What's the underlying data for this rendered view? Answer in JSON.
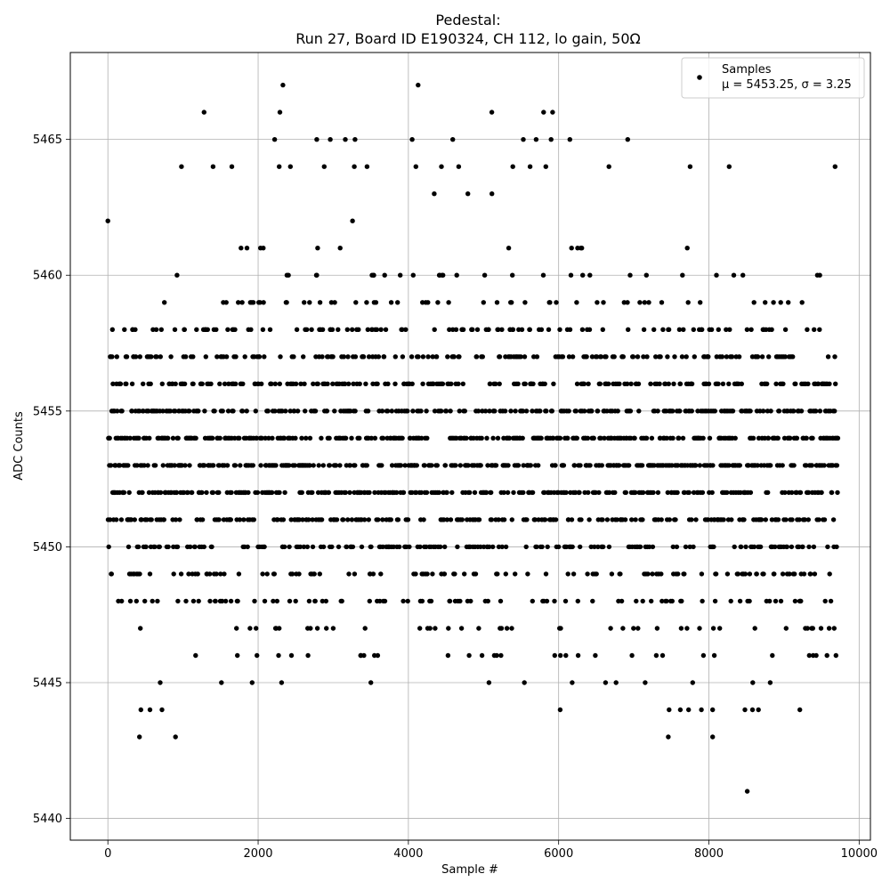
{
  "chart_data": {
    "type": "scatter",
    "title": "Pedestal:",
    "subtitle": "Run 27, Board ID E190324, CH 112, lo gain, 50Ω",
    "xlabel": "Sample #",
    "ylabel": "ADC Counts",
    "xlim": [
      -500,
      10150
    ],
    "ylim": [
      5439.2,
      5468.2
    ],
    "xticks": [
      0,
      2000,
      4000,
      6000,
      8000,
      10000
    ],
    "xtick_labels": [
      "0",
      "2000",
      "4000",
      "6000",
      "8000",
      "10000"
    ],
    "yticks": [
      5440,
      5445,
      5450,
      5455,
      5460,
      5465
    ],
    "ytick_labels": [
      "5440",
      "5445",
      "5450",
      "5455",
      "5460",
      "5465"
    ],
    "grid": true,
    "legend": {
      "placement": "top-right",
      "entries": [
        "Samples",
        "μ = 5453.25, σ = 3.25"
      ]
    },
    "marker_color": "#000000",
    "series": [
      {
        "name": "Samples",
        "mean": 5453.25,
        "sigma": 3.25,
        "n_samples": 9720,
        "outliers": [
          [
            2330,
            5467
          ],
          [
            4130,
            5467
          ],
          [
            1280,
            5466
          ],
          [
            2290,
            5466
          ],
          [
            5110,
            5466
          ],
          [
            5800,
            5466
          ],
          [
            5920,
            5466
          ],
          [
            2220,
            5465
          ],
          [
            2780,
            5465
          ],
          [
            2960,
            5465
          ],
          [
            3160,
            5465
          ],
          [
            3290,
            5465
          ],
          [
            4050,
            5465
          ],
          [
            4590,
            5465
          ],
          [
            5530,
            5465
          ],
          [
            5700,
            5465
          ],
          [
            5900,
            5465
          ],
          [
            6150,
            5465
          ],
          [
            6920,
            5465
          ],
          [
            980,
            5464
          ],
          [
            1400,
            5464
          ],
          [
            1650,
            5464
          ],
          [
            2280,
            5464
          ],
          [
            2430,
            5464
          ],
          [
            2880,
            5464
          ],
          [
            3280,
            5464
          ],
          [
            3450,
            5464
          ],
          [
            4100,
            5464
          ],
          [
            4440,
            5464
          ],
          [
            4670,
            5464
          ],
          [
            5390,
            5464
          ],
          [
            5620,
            5464
          ],
          [
            5830,
            5464
          ],
          [
            6670,
            5464
          ],
          [
            7750,
            5464
          ],
          [
            8270,
            5464
          ],
          [
            9680,
            5464
          ],
          [
            420,
            5443
          ],
          [
            900,
            5443
          ],
          [
            7460,
            5443
          ],
          [
            8050,
            5443
          ],
          [
            440,
            5444
          ],
          [
            560,
            5444
          ],
          [
            720,
            5444
          ],
          [
            6020,
            5444
          ],
          [
            7470,
            5444
          ],
          [
            7620,
            5444
          ],
          [
            7730,
            5444
          ],
          [
            7900,
            5444
          ],
          [
            8050,
            5444
          ],
          [
            8480,
            5444
          ],
          [
            8580,
            5444
          ],
          [
            8660,
            5444
          ],
          [
            9210,
            5444
          ],
          [
            8510,
            5441
          ]
        ]
      }
    ]
  }
}
